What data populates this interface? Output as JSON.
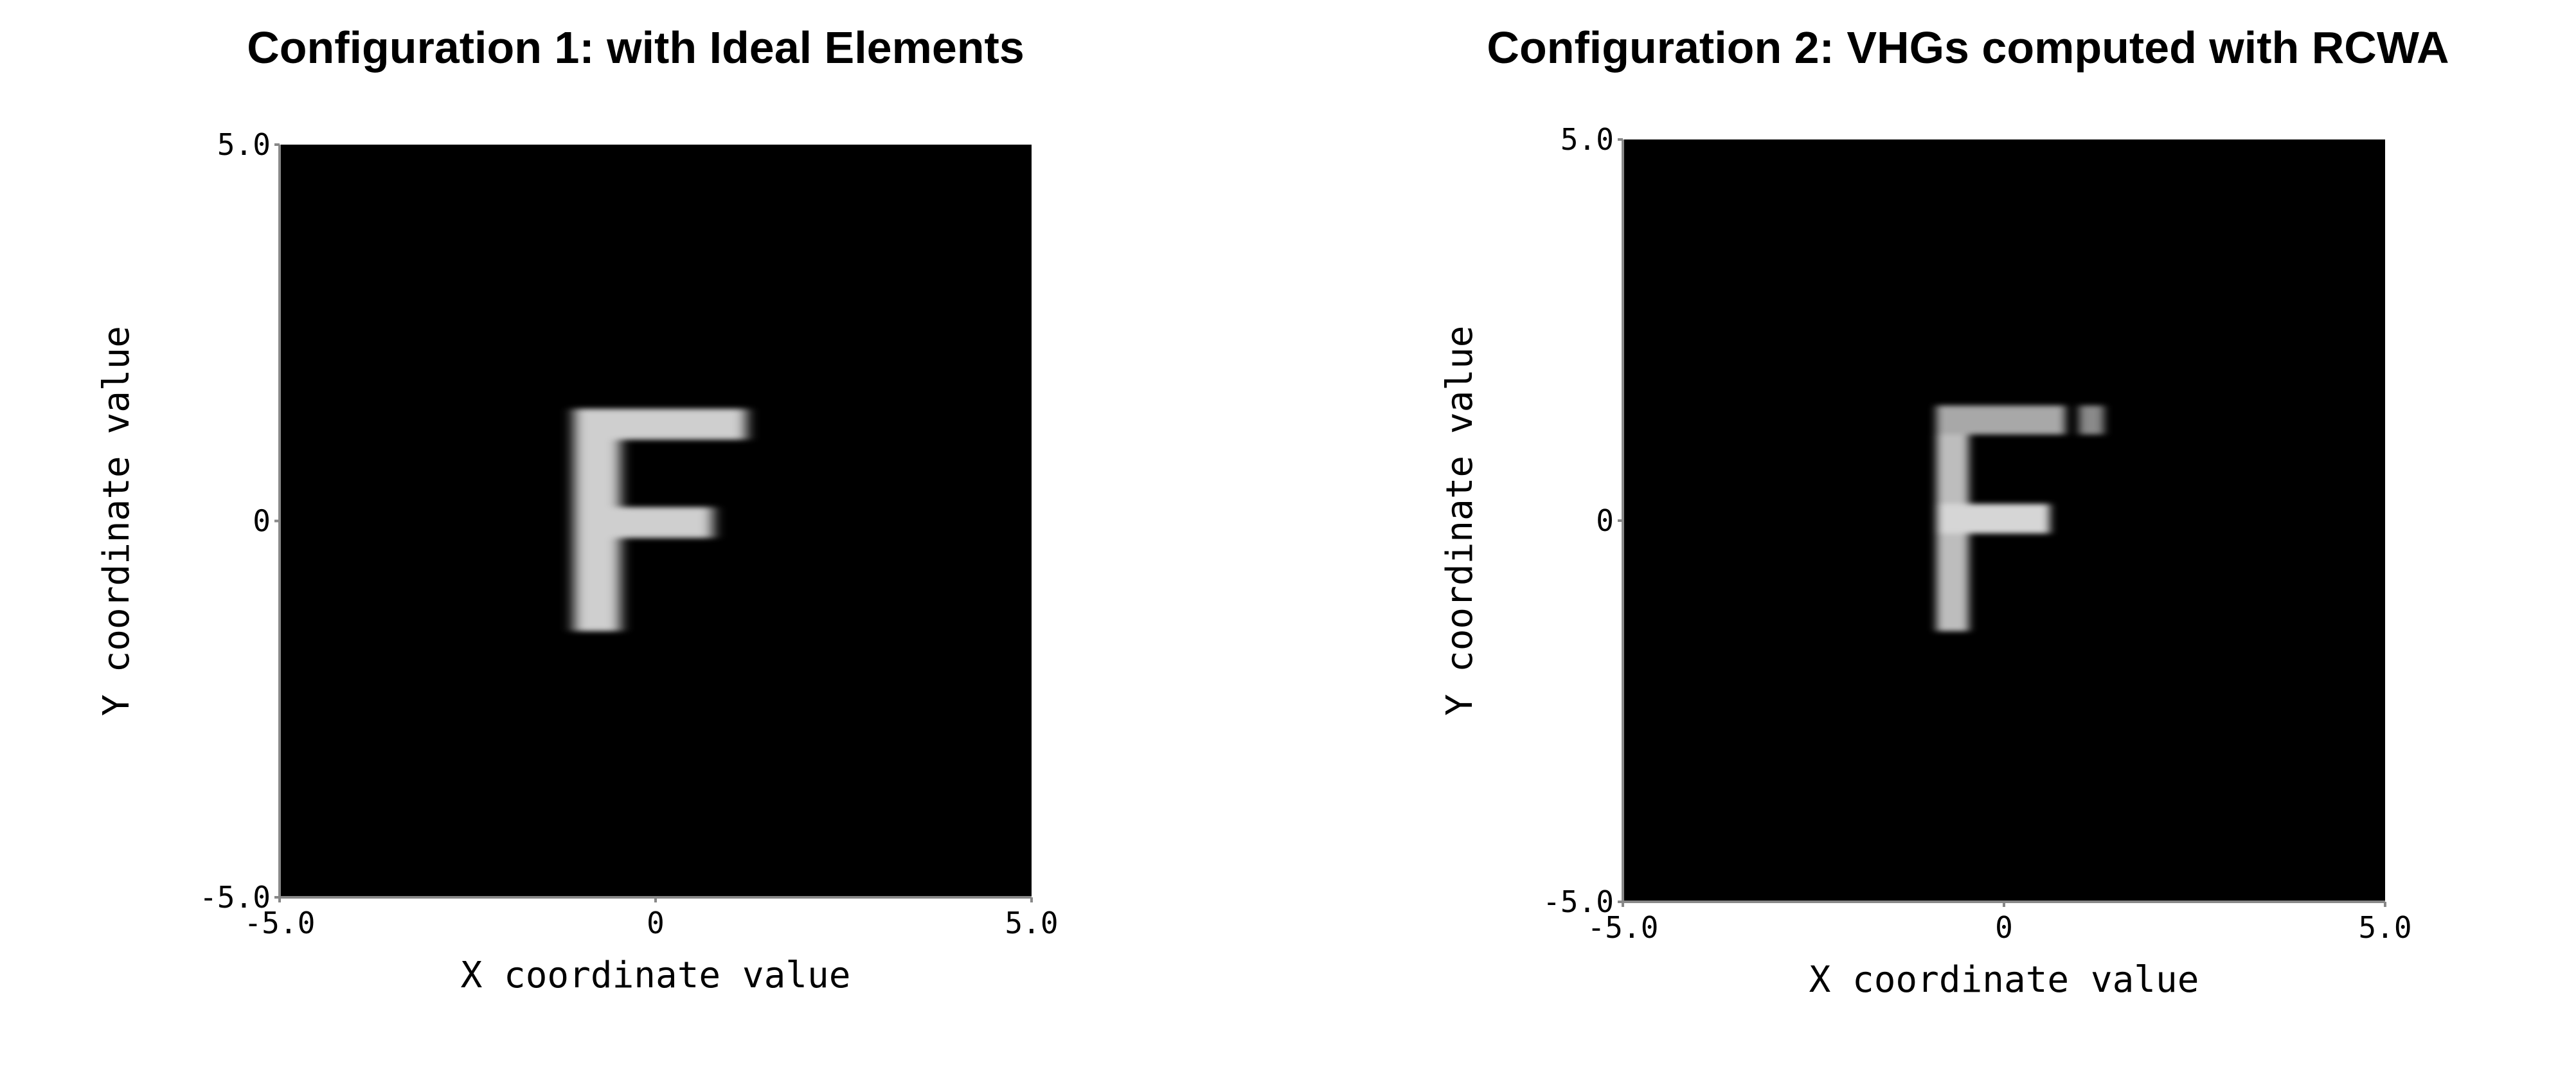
{
  "chart_data": [
    {
      "type": "heatmap",
      "title": "Configuration 1: with Ideal Elements",
      "xlabel": "X coordinate value",
      "ylabel": "Y coordinate value",
      "xlim": [
        -5,
        5
      ],
      "ylim": [
        -5,
        5
      ],
      "xticks": [
        {
          "value": -5,
          "label": "-5.0"
        },
        0,
        {
          "value": 5,
          "label": "5.0"
        }
      ],
      "yticks": [
        {
          "value": -5,
          "label": "-5.0"
        },
        0,
        {
          "value": 5,
          "label": "5.0"
        }
      ]
    },
    {
      "type": "heatmap",
      "title": "Configuration 2: VHGs computed with RCWA",
      "xlabel": "X coordinate value",
      "ylabel": "Y coordinate value",
      "xlim": [
        -5,
        5
      ],
      "ylim": [
        -5,
        5
      ],
      "xticks": [
        {
          "value": -5,
          "label": "-5.0"
        },
        0,
        {
          "value": 5,
          "label": "5.0"
        }
      ],
      "yticks": [
        {
          "value": -5,
          "label": "-5.0"
        },
        0,
        {
          "value": 5,
          "label": "5.0"
        }
      ]
    }
  ]
}
